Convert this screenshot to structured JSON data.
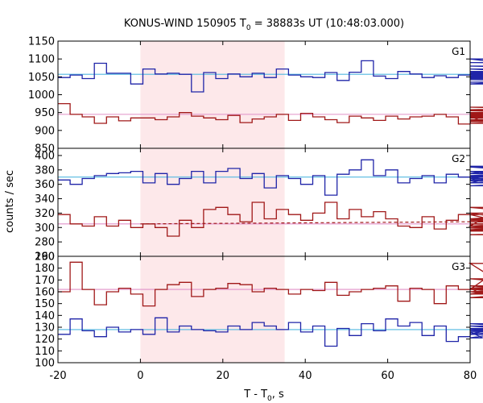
{
  "chart_data": {
    "type": "line",
    "title": {
      "prefix": "KONUS-WIND 150905 T",
      "sub": "0",
      "suffix": " = 38883s UT (10:48:03.000)"
    },
    "xlabel": {
      "prefix": "T - T",
      "sub": "0",
      "suffix": ", s"
    },
    "ylabel": "counts / sec",
    "xlim": [
      -20,
      80
    ],
    "xticks": [
      -20,
      0,
      20,
      40,
      60,
      80
    ],
    "highlight_interval": [
      0,
      35
    ],
    "highlight_color": "#fde8ea",
    "bin_width": 2.944,
    "colors": {
      "blue": "#1f24a8",
      "red": "#a01818",
      "bg_blue": "#52b8e0",
      "bg_red": "#e090c8"
    },
    "panels": [
      {
        "label": "G1",
        "ylim": [
          850,
          1150
        ],
        "yticks": [
          850,
          900,
          950,
          1000,
          1050,
          1100,
          1150
        ],
        "series": [
          {
            "color": "blue",
            "values": [
              1048,
              1055,
              1045,
              1088,
              1060,
              1060,
              1030,
              1072,
              1058,
              1060,
              1057,
              1008,
              1062,
              1045,
              1058,
              1050,
              1060,
              1048,
              1072,
              1055,
              1050,
              1048,
              1062,
              1040,
              1063,
              1095,
              1052,
              1045,
              1065,
              1058,
              1048,
              1053,
              1048,
              1055,
              1058,
              1050,
              1062,
              1050,
              1055,
              1048,
              1062,
              1045,
              1060,
              1072,
              1055,
              1100,
              1052,
              1030,
              1058,
              1058,
              1072,
              1060,
              1065,
              1042,
              1042,
              1035,
              1035,
              1045,
              1058,
              1045,
              1050,
              1048,
              1090,
              1080,
              1055,
              1050,
              1050,
              1050,
              1050
            ]
          },
          {
            "color": "red",
            "values": [
              975,
              945,
              938,
              920,
              938,
              927,
              935,
              935,
              930,
              938,
              950,
              940,
              935,
              930,
              942,
              922,
              932,
              938,
              945,
              928,
              948,
              938,
              930,
              922,
              940,
              935,
              928,
              940,
              932,
              938,
              940,
              945,
              938,
              918,
              925,
              940,
              945,
              940,
              938,
              945,
              942,
              948,
              950,
              935,
              958,
              965,
              955,
              942,
              925,
              940,
              935,
              930,
              920,
              945,
              945,
              935,
              940,
              930,
              940,
              942,
              938,
              945,
              950,
              940,
              928,
              935,
              930,
              938,
              945
            ]
          }
        ],
        "bg_lines": [
          {
            "color": "bg_blue",
            "style": "solid",
            "y1": 1057,
            "y2": 1057,
            "from": -20
          },
          {
            "color": "bg_red",
            "style": "solid",
            "y1": 945,
            "y2": 945,
            "from": -20
          }
        ]
      },
      {
        "label": "G2",
        "ylim": [
          260,
          410
        ],
        "yticks": [
          260,
          280,
          300,
          320,
          340,
          360,
          380,
          400
        ],
        "series": [
          {
            "color": "blue",
            "values": [
              366,
              360,
              368,
              372,
              375,
              376,
              378,
              362,
              375,
              360,
              368,
              378,
              362,
              378,
              382,
              368,
              375,
              355,
              372,
              368,
              360,
              372,
              345,
              374,
              380,
              394,
              372,
              380,
              362,
              368,
              372,
              362,
              374,
              370,
              365,
              372,
              362,
              375,
              384,
              378,
              368,
              385,
              372,
              362,
              372,
              372,
              372,
              368,
              362,
              370,
              372,
              358,
              372,
              385,
              368,
              370,
              375,
              365,
              372,
              358,
              368,
              370,
              366,
              368,
              372,
              370,
              368,
              370,
              370
            ]
          },
          {
            "color": "red",
            "values": [
              318,
              305,
              302,
              315,
              302,
              310,
              300,
              305,
              300,
              288,
              310,
              300,
              325,
              328,
              318,
              308,
              335,
              312,
              325,
              318,
              310,
              320,
              335,
              312,
              325,
              315,
              322,
              312,
              302,
              300,
              315,
              298,
              310,
              318,
              302,
              312,
              310,
              318,
              302,
              296,
              302,
              308,
              312,
              320,
              295,
              302,
              295,
              312,
              328,
              305,
              300,
              290,
              298,
              308,
              302,
              310,
              305,
              310,
              305,
              308,
              310,
              305,
              312,
              305,
              310,
              305,
              310,
              305,
              308
            ]
          }
        ],
        "bg_lines": [
          {
            "color": "bg_blue",
            "style": "solid",
            "y1": 370,
            "y2": 370,
            "from": -20
          },
          {
            "color": "bg_red",
            "style": "solid",
            "y1": 305,
            "y2": 305,
            "from": -20
          },
          {
            "color": "red",
            "style": "dashed",
            "y1": 305,
            "y2": 308,
            "from": 0
          }
        ]
      },
      {
        "label": "G3",
        "ylim": [
          100,
          190
        ],
        "yticks": [
          100,
          110,
          120,
          130,
          140,
          150,
          160,
          170,
          180,
          190
        ],
        "series": [
          {
            "color": "red",
            "values": [
              160,
              185,
              162,
              149,
              160,
              163,
              158,
              148,
              162,
              166,
              168,
              156,
              162,
              163,
              167,
              166,
              160,
              163,
              162,
              158,
              162,
              161,
              168,
              157,
              160,
              162,
              163,
              165,
              152,
              163,
              162,
              150,
              165,
              162,
              163,
              158,
              162,
              184,
              158,
              162,
              160,
              165,
              160,
              155,
              163,
              171,
              160,
              158,
              162,
              160,
              165,
              160,
              163,
              158,
              162,
              160,
              165,
              160,
              163,
              158,
              162,
              160,
              163,
              162,
              160,
              162,
              163,
              160,
              162
            ]
          },
          {
            "color": "blue",
            "values": [
              124,
              137,
              127,
              122,
              130,
              126,
              128,
              124,
              138,
              126,
              131,
              128,
              127,
              126,
              131,
              128,
              134,
              131,
              128,
              134,
              126,
              131,
              114,
              129,
              123,
              133,
              127,
              137,
              131,
              134,
              123,
              131,
              118,
              122,
              126,
              121,
              124,
              131,
              128,
              133,
              129,
              126,
              128,
              124,
              131,
              128,
              126,
              128,
              131,
              124,
              128,
              126,
              128,
              131,
              126,
              128,
              124,
              128,
              126,
              128,
              126,
              129,
              128,
              126,
              128,
              127,
              128,
              127,
              128
            ]
          }
        ],
        "bg_lines": [
          {
            "color": "bg_red",
            "style": "solid",
            "y1": 162,
            "y2": 162,
            "from": -20
          },
          {
            "color": "bg_blue",
            "style": "solid",
            "y1": 128,
            "y2": 128,
            "from": -20
          }
        ]
      }
    ]
  }
}
